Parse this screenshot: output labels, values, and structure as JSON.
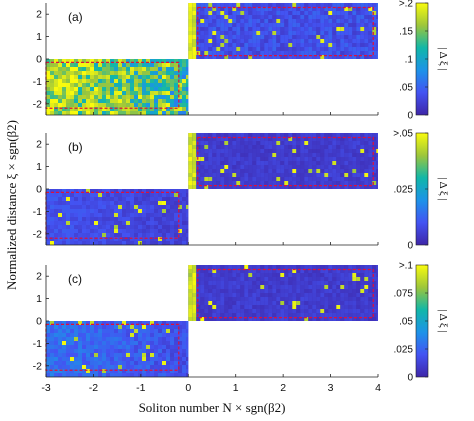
{
  "chart_data": {
    "type": "heatmap",
    "xlabel": "Soliton number N × sgn(β2)",
    "ylabel": "Normalized distance  ξ × sgn(β2)",
    "xlim": [
      -3,
      4
    ],
    "ylim": [
      -2.5,
      2.5
    ],
    "x_ticks": [
      "-3",
      "-2",
      "-1",
      "0",
      "1",
      "2",
      "3",
      "4"
    ],
    "y_ticks": [
      "-2",
      "-1",
      "0",
      "1",
      "2"
    ],
    "colormap": "parula",
    "dashed_box_color": "#e0103a",
    "colorbar_title": "| Δ ξ |",
    "panels": [
      {
        "tag": "(a)",
        "colorbar_ticks": [
          ">.2",
          ".15",
          ".1",
          ".05",
          "0"
        ],
        "colorbar_max": 0.2,
        "regions": [
          {
            "x": [
              -3,
              0
            ],
            "y": [
              -2.5,
              0
            ],
            "level": 0.55
          },
          {
            "x": [
              0,
              4
            ],
            "y": [
              0,
              2.5
            ],
            "level": 0.18
          }
        ],
        "dashed_boxes": [
          {
            "x": [
              -3,
              -0.2
            ],
            "y": [
              -2.2,
              -0.15
            ]
          },
          {
            "x": [
              0.2,
              3.9
            ],
            "y": [
              0.15,
              2.3
            ]
          }
        ]
      },
      {
        "tag": "(b)",
        "colorbar_ticks": [
          ">.05",
          ".025",
          "0"
        ],
        "colorbar_max": 0.05,
        "regions": [
          {
            "x": [
              -3,
              0
            ],
            "y": [
              -2.5,
              0
            ],
            "level": 0.12
          },
          {
            "x": [
              0,
              4
            ],
            "y": [
              0,
              2.5
            ],
            "level": 0.1
          }
        ],
        "dashed_boxes": [
          {
            "x": [
              -3,
              -0.2
            ],
            "y": [
              -2.2,
              -0.15
            ]
          },
          {
            "x": [
              0.2,
              3.9
            ],
            "y": [
              0.15,
              2.3
            ]
          }
        ]
      },
      {
        "tag": "(c)",
        "colorbar_ticks": [
          ">.1",
          ".075",
          ".05",
          ".025",
          "0"
        ],
        "colorbar_max": 0.1,
        "regions": [
          {
            "x": [
              -3,
              0
            ],
            "y": [
              -2.5,
              0
            ],
            "level": 0.18
          },
          {
            "x": [
              0,
              4
            ],
            "y": [
              0,
              2.5
            ],
            "level": 0.1
          }
        ],
        "dashed_boxes": [
          {
            "x": [
              -3,
              -0.2
            ],
            "y": [
              -2.2,
              -0.15
            ]
          },
          {
            "x": [
              0.2,
              3.9
            ],
            "y": [
              0.15,
              2.3
            ]
          }
        ]
      }
    ]
  }
}
